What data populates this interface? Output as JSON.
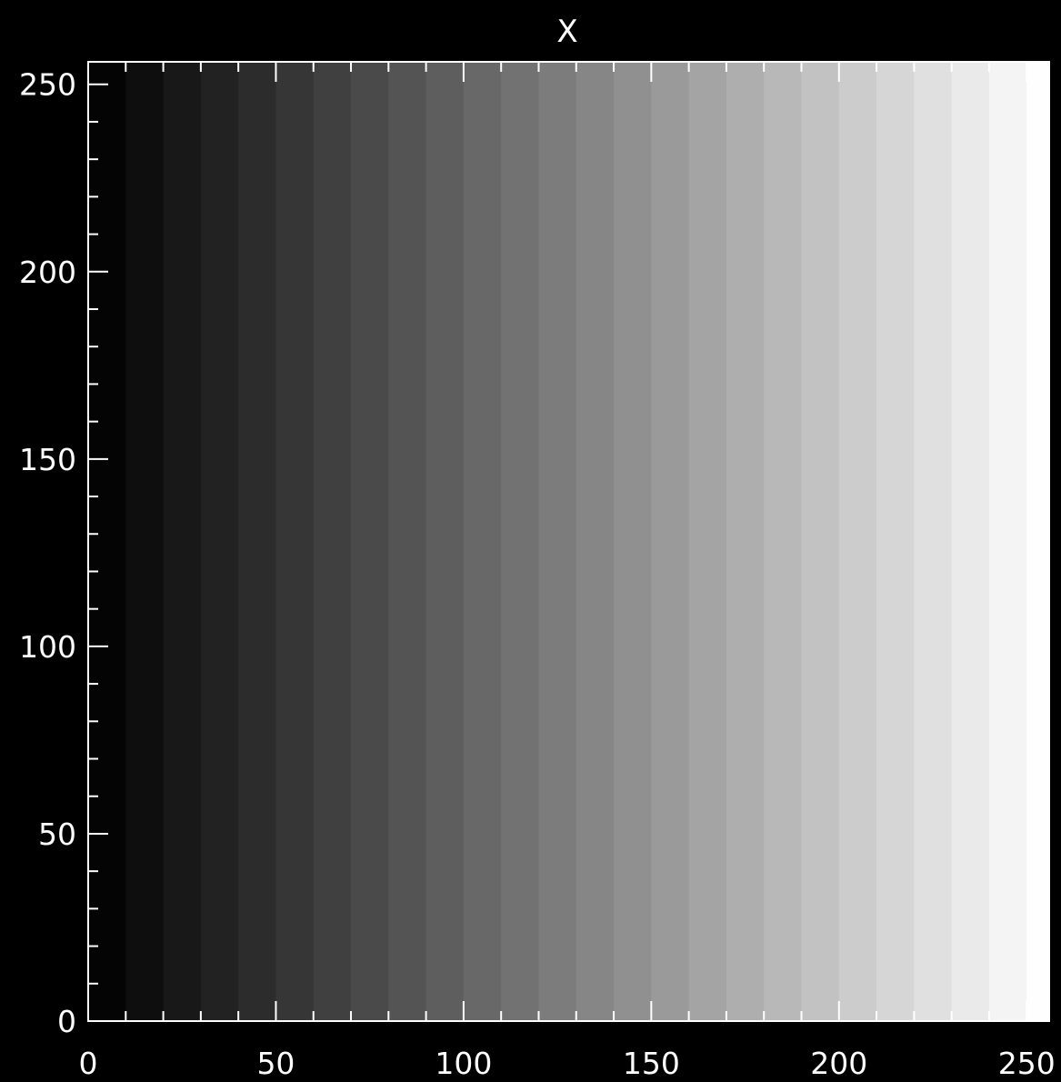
{
  "chart_data": {
    "type": "heatmap",
    "title": "X",
    "xlabel": "",
    "ylabel": "",
    "xlim": [
      0,
      256
    ],
    "ylim": [
      0,
      256
    ],
    "x_ticks": [
      {
        "value": 0,
        "label": "0"
      },
      {
        "value": 50,
        "label": "50"
      },
      {
        "value": 100,
        "label": "100"
      },
      {
        "value": 150,
        "label": "150"
      },
      {
        "value": 200,
        "label": "200"
      },
      {
        "value": 250,
        "label": "250"
      }
    ],
    "y_ticks": [
      {
        "value": 0,
        "label": "0"
      },
      {
        "value": 50,
        "label": "50"
      },
      {
        "value": 100,
        "label": "100"
      },
      {
        "value": 150,
        "label": "150"
      },
      {
        "value": 200,
        "label": "200"
      },
      {
        "value": 250,
        "label": "250"
      }
    ],
    "minor_tick_step": 10,
    "colormap": "grayscale",
    "band_width": 10,
    "bands": [
      {
        "x_start": 0,
        "x_end": 10,
        "value": 0
      },
      {
        "x_start": 10,
        "x_end": 20,
        "value": 10
      },
      {
        "x_start": 20,
        "x_end": 30,
        "value": 20
      },
      {
        "x_start": 30,
        "x_end": 40,
        "value": 30
      },
      {
        "x_start": 40,
        "x_end": 50,
        "value": 40
      },
      {
        "x_start": 50,
        "x_end": 60,
        "value": 50
      },
      {
        "x_start": 60,
        "x_end": 70,
        "value": 60
      },
      {
        "x_start": 70,
        "x_end": 80,
        "value": 70
      },
      {
        "x_start": 80,
        "x_end": 90,
        "value": 80
      },
      {
        "x_start": 90,
        "x_end": 100,
        "value": 90
      },
      {
        "x_start": 100,
        "x_end": 110,
        "value": 100
      },
      {
        "x_start": 110,
        "x_end": 120,
        "value": 110
      },
      {
        "x_start": 120,
        "x_end": 130,
        "value": 120
      },
      {
        "x_start": 130,
        "x_end": 140,
        "value": 130
      },
      {
        "x_start": 140,
        "x_end": 150,
        "value": 140
      },
      {
        "x_start": 150,
        "x_end": 160,
        "value": 150
      },
      {
        "x_start": 160,
        "x_end": 170,
        "value": 160
      },
      {
        "x_start": 170,
        "x_end": 180,
        "value": 170
      },
      {
        "x_start": 180,
        "x_end": 190,
        "value": 180
      },
      {
        "x_start": 190,
        "x_end": 200,
        "value": 190
      },
      {
        "x_start": 200,
        "x_end": 210,
        "value": 200
      },
      {
        "x_start": 210,
        "x_end": 220,
        "value": 210
      },
      {
        "x_start": 220,
        "x_end": 230,
        "value": 220
      },
      {
        "x_start": 230,
        "x_end": 240,
        "value": 230
      },
      {
        "x_start": 240,
        "x_end": 250,
        "value": 240
      },
      {
        "x_start": 250,
        "x_end": 256,
        "value": 250
      }
    ],
    "grid": false,
    "legend": "none"
  },
  "colors": {
    "background": "#000000",
    "axes": "#ffffff",
    "text": "#ffffff"
  }
}
